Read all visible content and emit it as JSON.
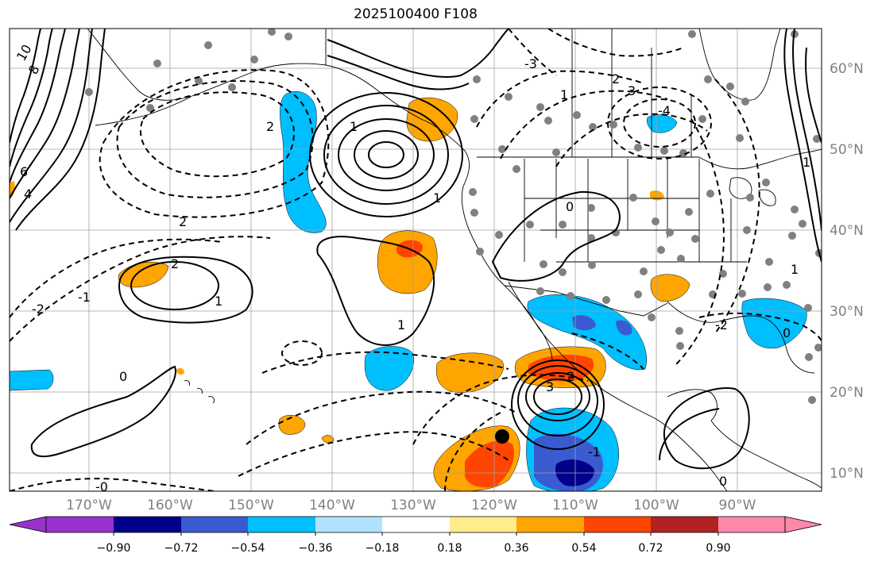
{
  "title": "2025100400 F108",
  "map": {
    "lon_ticks": [
      "170°W",
      "160°W",
      "150°W",
      "140°W",
      "130°W",
      "120°W",
      "110°W",
      "100°W",
      "90°W"
    ],
    "lat_ticks": [
      "60°N",
      "50°N",
      "40°N",
      "30°N",
      "20°N",
      "10°N"
    ],
    "contour_labels": [
      "10",
      "8",
      "6",
      "4",
      "2",
      "1",
      "0",
      "-0",
      "-1",
      "-2",
      "-3",
      "-4",
      "3",
      "2",
      "1",
      "1",
      "2",
      "1",
      "1",
      "0",
      "3",
      "2",
      "1",
      "0",
      "-2",
      "-1",
      "2",
      "1",
      "0"
    ],
    "storm_marker": "tropical-cyclone-center"
  },
  "colorbar": {
    "labels": [
      "−0.90",
      "−0.72",
      "−0.54",
      "−0.36",
      "−0.18",
      "0.18",
      "0.36",
      "0.54",
      "0.72",
      "0.90"
    ],
    "colors": [
      "#9932CC",
      "#00008B",
      "#3A5BD0",
      "#00BFFF",
      "#B0E2FF",
      "#FFFFFF",
      "#FFEC8B",
      "#FFA500",
      "#FF4500",
      "#B22222",
      "#FF88AA"
    ]
  }
}
